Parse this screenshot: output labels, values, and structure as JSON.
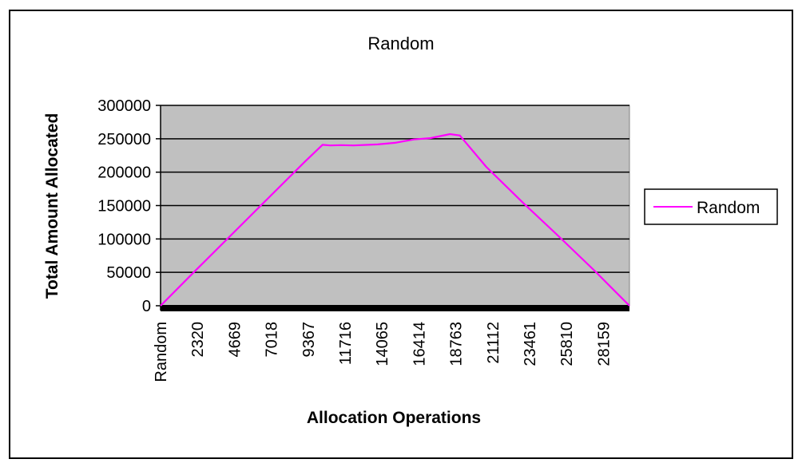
{
  "chart_data": {
    "type": "line",
    "title": "Random",
    "xlabel": "Allocation Operations",
    "ylabel": "Total Amount Allocated",
    "categories": [
      "Random",
      "2320",
      "4669",
      "7018",
      "9367",
      "11716",
      "14065",
      "16414",
      "18763",
      "21112",
      "23461",
      "25810",
      "28159"
    ],
    "ylim": [
      0,
      300000
    ],
    "yticks": [
      0,
      50000,
      100000,
      150000,
      200000,
      250000,
      300000
    ],
    "grid": true,
    "plot_background": "#c0c0c0",
    "legend_position": "right",
    "series": [
      {
        "name": "Random",
        "color": "#ff00ff",
        "x": [
          0,
          2320,
          4669,
          7018,
          9367,
          10500,
          11000,
          11716,
          12500,
          14065,
          15200,
          16414,
          17500,
          18763,
          19400,
          21112,
          23461,
          25810,
          28159,
          30400
        ],
        "values": [
          0,
          54000,
          108000,
          162000,
          216000,
          241000,
          240000,
          240500,
          240000,
          241500,
          244000,
          249000,
          251000,
          257000,
          255000,
          208000,
          155000,
          104000,
          52000,
          0
        ]
      }
    ],
    "x_range": [
      0,
      30400
    ]
  },
  "colors": {
    "frame": "#000000",
    "plot_bg": "#c0c0c0",
    "gridline": "#000000",
    "series": "#ff00ff"
  }
}
